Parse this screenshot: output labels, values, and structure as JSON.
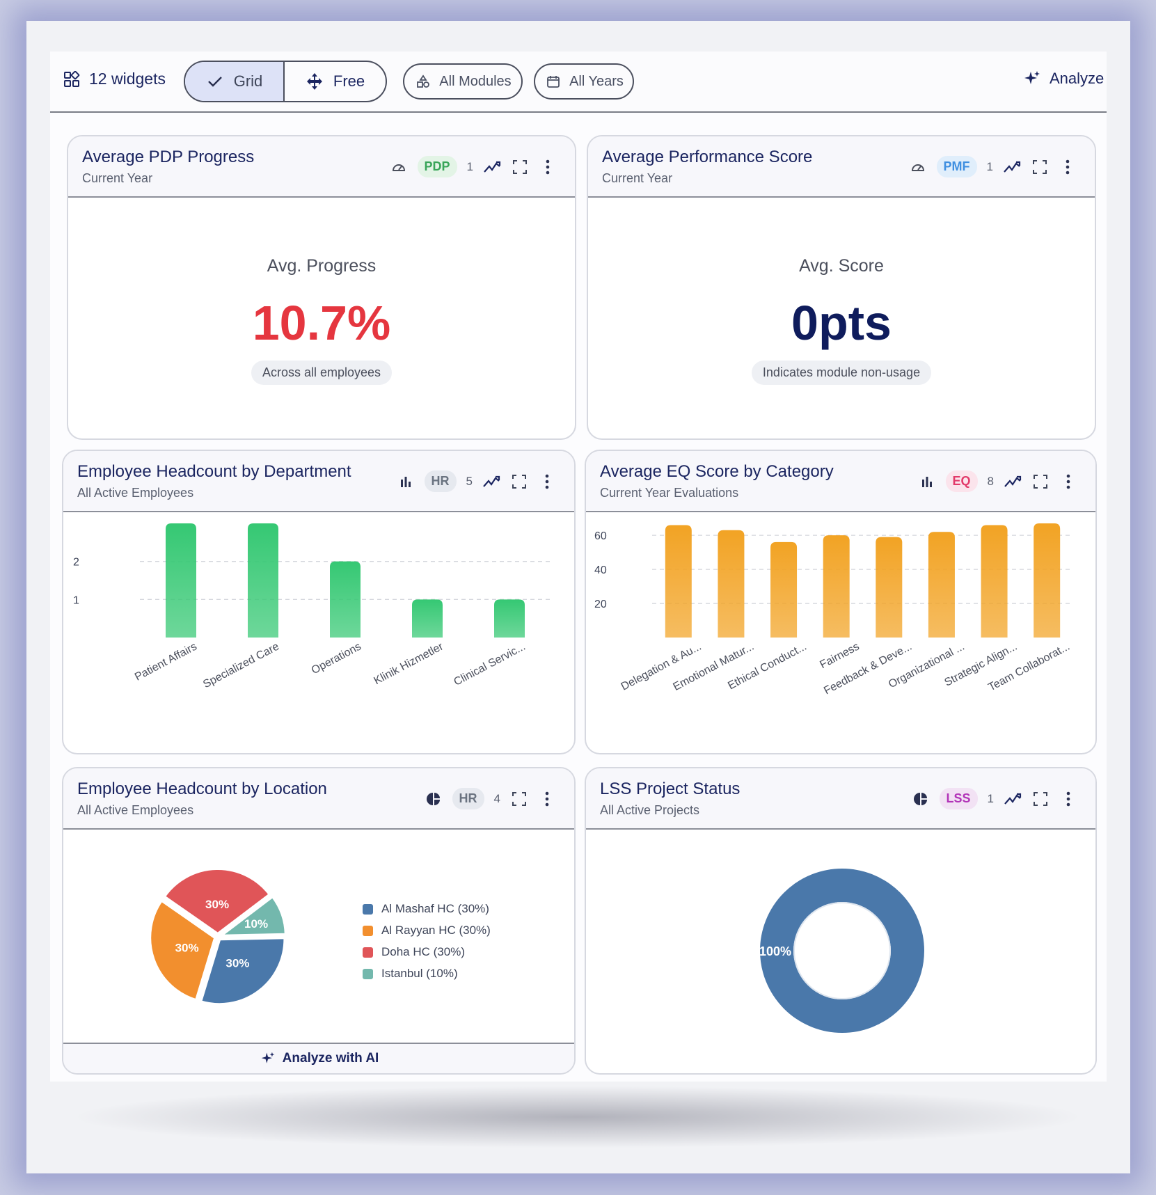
{
  "toolbar": {
    "widget_count": "12 widgets",
    "grid_label": "Grid",
    "free_label": "Free",
    "modules_label": "All Modules",
    "years_label": "All Years",
    "analyze_label": "Analyze"
  },
  "cards": {
    "pdp": {
      "title": "Average PDP Progress",
      "subtitle": "Current Year",
      "badge": "PDP",
      "count": "1",
      "kpi_label": "Avg. Progress",
      "kpi_value": "10.7%",
      "kpi_note": "Across all employees",
      "value_color": "#e5363f"
    },
    "pmf": {
      "title": "Average Performance Score",
      "subtitle": "Current Year",
      "badge": "PMF",
      "count": "1",
      "kpi_label": "Avg. Score",
      "kpi_value": "0pts",
      "kpi_note": "Indicates module non-usage",
      "value_color": "#0f1c5c"
    },
    "dept": {
      "title": "Employee Headcount by Department",
      "subtitle": "All Active Employees",
      "badge": "HR",
      "count": "5"
    },
    "eq": {
      "title": "Average EQ Score by Category",
      "subtitle": "Current Year Evaluations",
      "badge": "EQ",
      "count": "8"
    },
    "location": {
      "title": "Employee Headcount by Location",
      "subtitle": "All Active Employees",
      "badge": "HR",
      "count": "4",
      "footer": "Analyze with AI"
    },
    "lss": {
      "title": "LSS Project Status",
      "subtitle": "All Active Projects",
      "badge": "LSS",
      "count": "1"
    }
  },
  "chart_data": [
    {
      "id": "dept",
      "type": "bar",
      "categories": [
        "Patient Affairs",
        "Specialized Care",
        "Operations",
        "Klinik Hizmetler",
        "Clinical Servic..."
      ],
      "values": [
        3,
        3,
        2,
        1,
        1
      ],
      "yticks": [
        1,
        2
      ],
      "ylim": [
        0,
        3
      ],
      "color": "#35c873"
    },
    {
      "id": "eq",
      "type": "bar",
      "categories": [
        "Delegation & Au...",
        "Emotional Matur...",
        "Ethical Conduct...",
        "Fairness",
        "Feedback & Deve...",
        "Organizational ...",
        "Strategic Align...",
        "Team Collaborat..."
      ],
      "values": [
        66,
        63,
        56,
        60,
        59,
        62,
        66,
        67
      ],
      "yticks": [
        20,
        40,
        60
      ],
      "ylim": [
        0,
        67
      ],
      "color": "#f2a324"
    },
    {
      "id": "location",
      "type": "pie",
      "slices": [
        {
          "label": "Al Mashaf HC (30%)",
          "value": 30,
          "text": "30%",
          "color": "#4a78aa"
        },
        {
          "label": "Al Rayyan HC (30%)",
          "value": 30,
          "text": "30%",
          "color": "#f28f2e"
        },
        {
          "label": "Doha HC (30%)",
          "value": 30,
          "text": "30%",
          "color": "#e05558"
        },
        {
          "label": "Istanbul (10%)",
          "value": 10,
          "text": "10%",
          "color": "#73b8ad"
        }
      ]
    },
    {
      "id": "lss",
      "type": "pie",
      "slices": [
        {
          "value": 100,
          "text": "100%",
          "color": "#4a78aa"
        }
      ]
    }
  ]
}
